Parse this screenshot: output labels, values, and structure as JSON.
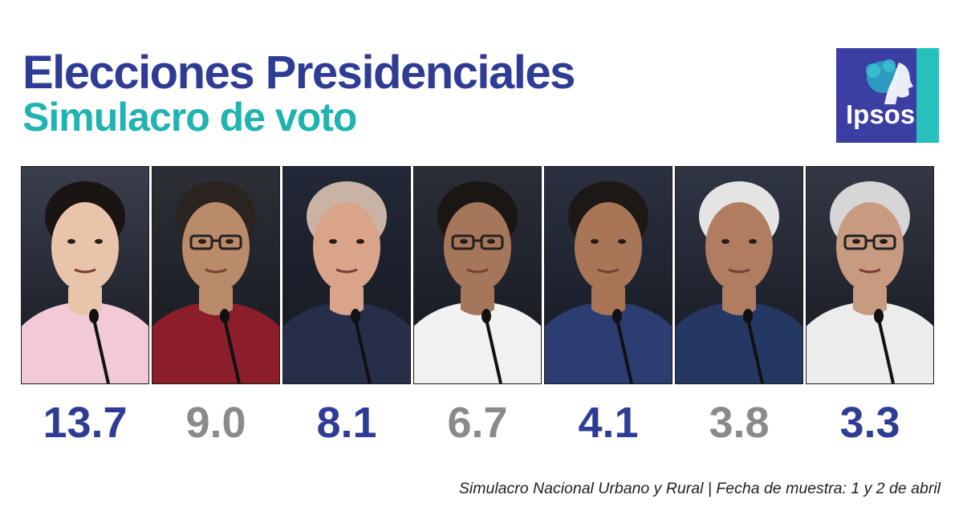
{
  "header": {
    "title": "Elecciones Presidenciales",
    "subtitle": "Simulacro de voto"
  },
  "logo": {
    "text": "Ipsos"
  },
  "colors": {
    "title": "#2f3c95",
    "subtitle": "#21b3b0",
    "value_blue": "#2f3c95",
    "value_gray": "#8a8a8a",
    "logo_blue": "#3b3fa3",
    "logo_teal": "#27c0bd"
  },
  "candidates": [
    {
      "value": "13.7",
      "color": "#2f3c95",
      "skin": "#e8c4aa",
      "hair": "#1a1412",
      "clothes": "#f2c9d7",
      "bg": "#3b3f4d",
      "glasses": false
    },
    {
      "value": "9.0",
      "color": "#8a8a8a",
      "skin": "#b98b6a",
      "hair": "#2b2320",
      "clothes": "#8b1e2a",
      "bg": "#2d2f36",
      "glasses": true
    },
    {
      "value": "8.1",
      "color": "#2f3c95",
      "skin": "#d9a48a",
      "hair": "#c9b3a5",
      "clothes": "#262e4a",
      "bg": "#232838",
      "glasses": false
    },
    {
      "value": "6.7",
      "color": "#8a8a8a",
      "skin": "#a5765a",
      "hair": "#1a1614",
      "clothes": "#f1f1f1",
      "bg": "#2a2d36",
      "glasses": true
    },
    {
      "value": "4.1",
      "color": "#2f3c95",
      "skin": "#a87656",
      "hair": "#1b1816",
      "clothes": "#2c3d72",
      "bg": "#2b3040",
      "glasses": false
    },
    {
      "value": "3.8",
      "color": "#8a8a8a",
      "skin": "#b07d60",
      "hair": "#e4e4e4",
      "clothes": "#243863",
      "bg": "#303544",
      "glasses": false
    },
    {
      "value": "3.3",
      "color": "#2f3c95",
      "skin": "#c89a80",
      "hair": "#d6d6d6",
      "clothes": "#ececec",
      "bg": "#343844",
      "glasses": true
    }
  ],
  "footer": {
    "note": "Simulacro Nacional Urbano y Rural | Fecha de muestra: 1 y 2 de abril"
  }
}
